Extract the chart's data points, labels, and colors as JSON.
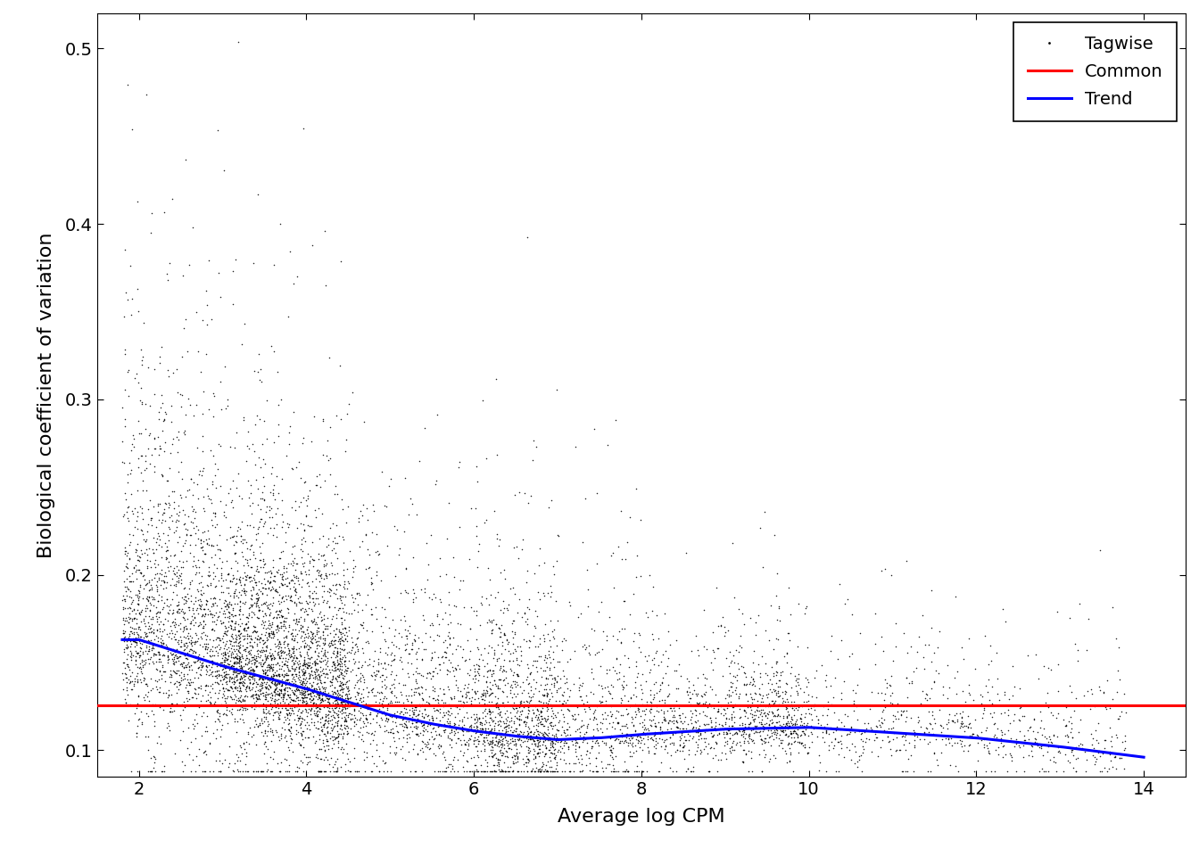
{
  "title": "",
  "xlabel": "Average log CPM",
  "ylabel": "Biological coefficient of variation",
  "xlim": [
    1.5,
    14.5
  ],
  "ylim": [
    0.085,
    0.52
  ],
  "xticks": [
    2,
    4,
    6,
    8,
    10,
    12,
    14
  ],
  "yticks": [
    0.1,
    0.2,
    0.3,
    0.4,
    0.5
  ],
  "common_bcv": 0.1255,
  "common_color": "#FF0000",
  "trend_color": "#0000FF",
  "scatter_color": "#000000",
  "scatter_size": 1.2,
  "scatter_alpha": 0.85,
  "line_width": 2.2,
  "n_points": 9000,
  "seed": 42,
  "background_color": "#FFFFFF",
  "legend_labels": [
    "Tagwise",
    "Common",
    "Trend"
  ],
  "legend_loc": "upper right",
  "trend_x": [
    2.0,
    3.0,
    4.0,
    5.0,
    5.5,
    6.0,
    6.5,
    7.0,
    7.5,
    8.0,
    9.0,
    10.0,
    11.0,
    12.0,
    13.0,
    14.0
  ],
  "trend_y": [
    0.163,
    0.148,
    0.135,
    0.12,
    0.115,
    0.111,
    0.108,
    0.106,
    0.107,
    0.109,
    0.112,
    0.113,
    0.11,
    0.107,
    0.102,
    0.096
  ]
}
